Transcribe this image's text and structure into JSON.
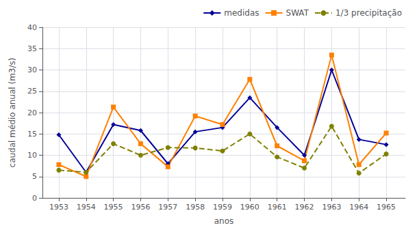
{
  "chart_data": {
    "type": "line",
    "x": [
      1953,
      1954,
      1955,
      1956,
      1957,
      1958,
      1959,
      1960,
      1961,
      1962,
      1963,
      1964,
      1965
    ],
    "series": [
      {
        "name": "medidas",
        "color": "#000099",
        "marker": "diamond",
        "line_style": "solid",
        "values": [
          14.8,
          6.0,
          17.2,
          15.8,
          8.0,
          15.5,
          16.5,
          23.5,
          16.5,
          10.0,
          30.0,
          13.7,
          12.5
        ]
      },
      {
        "name": "SWAT",
        "color": "#FF8000",
        "marker": "square",
        "line_style": "solid",
        "values": [
          7.8,
          5.0,
          21.3,
          12.7,
          7.3,
          19.2,
          17.2,
          27.8,
          12.2,
          8.7,
          33.5,
          7.8,
          15.2
        ]
      },
      {
        "name": "1/3 precipitação",
        "color": "#808000",
        "marker": "circle",
        "line_style": "dashed",
        "values": [
          6.5,
          6.0,
          12.7,
          10.0,
          11.8,
          11.7,
          11.0,
          15.0,
          9.6,
          7.0,
          16.8,
          5.8,
          10.3
        ]
      }
    ],
    "xlabel": "anos",
    "ylabel": "caudal médio anual (m3/s)",
    "xlim": [
      1952.4,
      1965.7
    ],
    "xticks": [
      1953,
      1954,
      1955,
      1956,
      1957,
      1958,
      1959,
      1960,
      1961,
      1962,
      1963,
      1964,
      1965
    ],
    "ylim": [
      0,
      40
    ],
    "yticks": [
      0,
      5,
      10,
      15,
      20,
      25,
      30,
      35,
      40
    ],
    "grid": true,
    "legend": "upper right"
  }
}
